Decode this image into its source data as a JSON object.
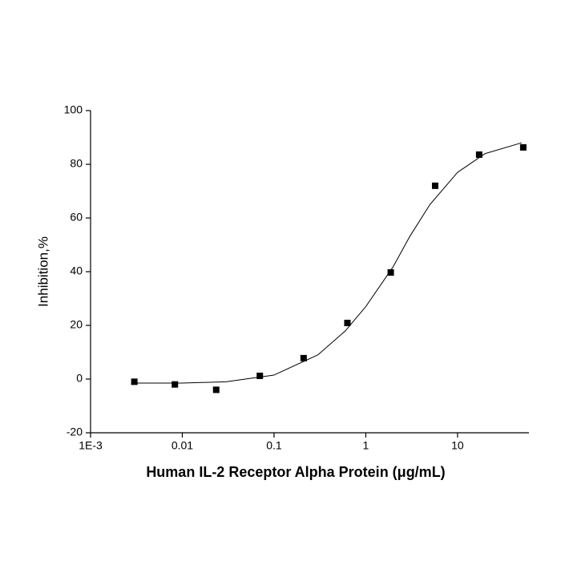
{
  "chart_data": {
    "type": "scatter",
    "xlabel": "Human IL-2 Receptor Alpha Protein (μg/mL)",
    "ylabel": "Inhibition,%",
    "xscale": "log",
    "xlim": [
      0.001,
      60
    ],
    "xticks": [
      {
        "value": 0.001,
        "label": "1E-3"
      },
      0.01,
      0.1,
      1,
      10
    ],
    "ylim": [
      -20,
      100
    ],
    "yticks": [
      -20,
      0,
      20,
      40,
      60,
      80,
      100
    ],
    "grid": false,
    "series": [
      {
        "type": "scatter",
        "color": "#000000",
        "x": [
          0.003,
          0.0083,
          0.0234,
          0.07,
          0.21,
          0.63,
          1.87,
          5.7,
          17.2,
          52
        ],
        "values": [
          -1,
          -2,
          -4,
          1.2,
          7.8,
          20.9,
          39.7,
          72,
          83.6,
          86.3
        ]
      },
      {
        "type": "line",
        "color": "#000000",
        "x": [
          0.003,
          0.01,
          0.03,
          0.1,
          0.3,
          0.6,
          1,
          2,
          3,
          5,
          10,
          20,
          50
        ],
        "values": [
          -1.5,
          -1.5,
          -1,
          1.5,
          9,
          18,
          27,
          42,
          53,
          65,
          77,
          84,
          88
        ]
      }
    ]
  }
}
